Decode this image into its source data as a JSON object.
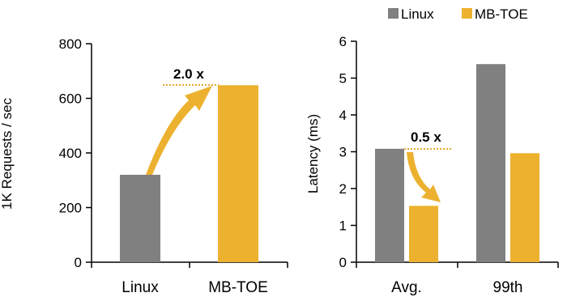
{
  "legend": {
    "placement": "top-right",
    "entries": [
      {
        "name": "Linux",
        "color": "#808080"
      },
      {
        "name": "MB-TOE",
        "color": "#ECB12E"
      }
    ]
  },
  "colors": {
    "linux": "#808080",
    "mbtoe": "#ECB12E",
    "arrow": "#ECB12E"
  },
  "chart_data": [
    {
      "type": "bar",
      "title": "",
      "ylabel": "1K Requests / sec",
      "xlabel": "",
      "ylim": [
        0,
        800
      ],
      "yticks": [
        "0",
        "200",
        "400",
        "600",
        "800"
      ],
      "categories": [
        "Linux",
        "MB-TOE"
      ],
      "values": [
        320,
        648
      ],
      "annotation": {
        "text": "2.0 x",
        "from": "Linux",
        "to": "MB-TOE"
      }
    },
    {
      "type": "bar",
      "title": "",
      "ylabel": "Latency (ms)",
      "xlabel": "",
      "ylim": [
        0,
        6
      ],
      "yticks": [
        "0",
        "1",
        "2",
        "3",
        "4",
        "5",
        "6"
      ],
      "categories": [
        "Avg.",
        "99th"
      ],
      "series": [
        {
          "name": "Linux",
          "values": [
            3.08,
            5.38
          ]
        },
        {
          "name": "MB-TOE",
          "values": [
            1.53,
            2.96
          ]
        }
      ],
      "annotation": {
        "text": "0.5 x",
        "category": "Avg."
      }
    }
  ]
}
